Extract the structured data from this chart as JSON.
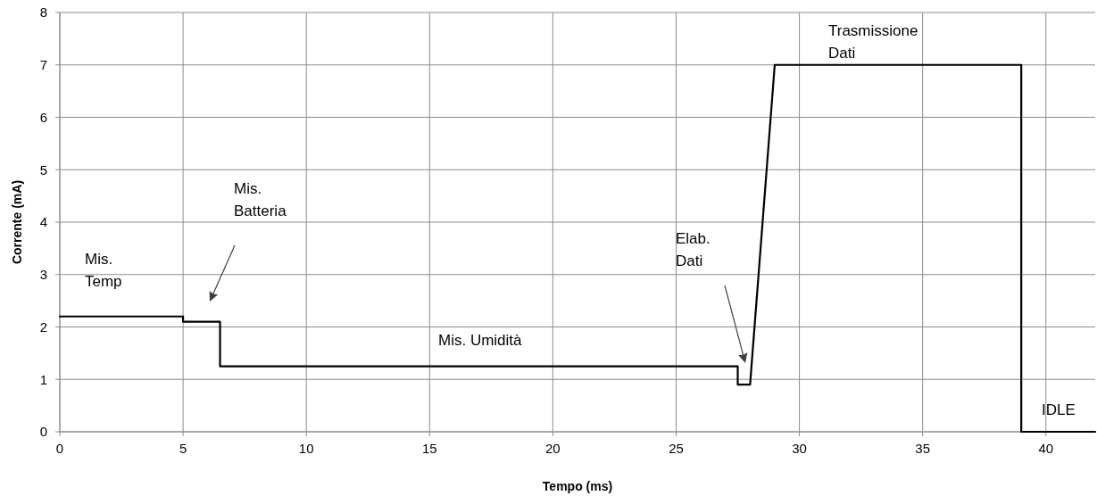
{
  "chart_data": {
    "type": "line",
    "xlabel": "Tempo (ms)",
    "ylabel": "Corrente (mA)",
    "xlim": [
      0,
      42
    ],
    "xticks": [
      0,
      5,
      10,
      15,
      20,
      25,
      30,
      35,
      40
    ],
    "ylim": [
      0,
      8
    ],
    "yticks": [
      0,
      1,
      2,
      3,
      4,
      5,
      6,
      7,
      8
    ],
    "grid": true,
    "marker": "none",
    "line_style": "solid",
    "series": [
      {
        "color": "#000000",
        "x": [
          0,
          5,
          5,
          6.5,
          6.5,
          27.5,
          27.5,
          28,
          29,
          39,
          39,
          42
        ],
        "values": [
          2.2,
          2.2,
          2.1,
          2.1,
          1.25,
          1.25,
          0.9,
          0.9,
          7,
          7,
          0,
          0
        ]
      }
    ],
    "annotations": [
      "Mis.\nTemp",
      "Mis.\nBatteria",
      "Mis. Umidità",
      "Elab.\nDati",
      "Trasmissione\nDati",
      "IDLE"
    ]
  }
}
